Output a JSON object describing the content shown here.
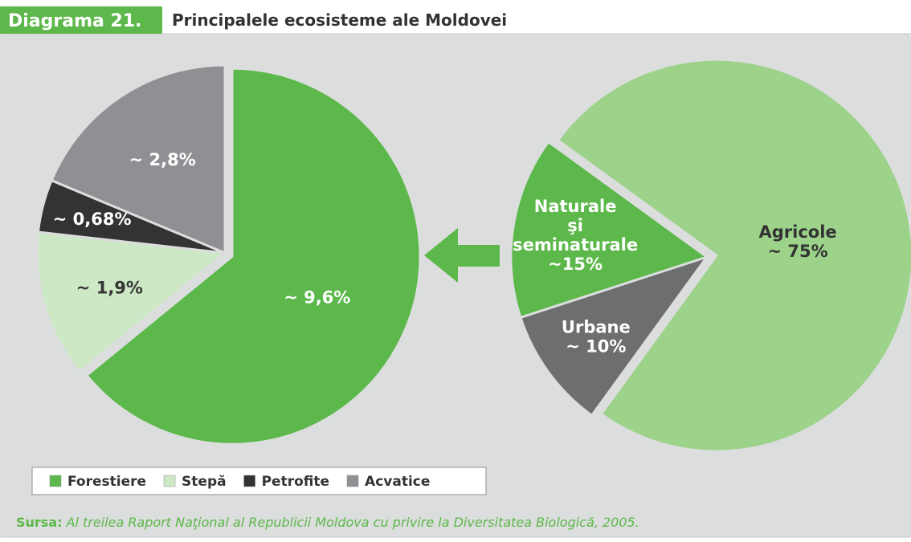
{
  "title_label": "Diagrama 21.",
  "title": "Principalele ecosisteme ale Moldovei",
  "source_label": "Sursa:",
  "source": "Al treilea Raport Naţional al Republicii Moldova cu privire la Diversitatea Biologică, 2005.",
  "chart_data": [
    {
      "type": "pie",
      "categories": [
        "Forestiere",
        "Stepă",
        "Petrofite",
        "Acvatice"
      ],
      "values": [
        9.6,
        1.9,
        0.68,
        2.8
      ],
      "value_labels": [
        "~ 9,6%",
        "~ 1,9%",
        "~ 0,68%",
        "~ 2,8%"
      ],
      "colors": [
        "#5cb84a",
        "#cde8c5",
        "#333333",
        "#8e9093"
      ],
      "legend": true
    },
    {
      "type": "pie",
      "categories": [
        "Agricole",
        "Urbane",
        "Naturale şi seminaturale"
      ],
      "values": [
        75,
        10,
        15
      ],
      "value_labels": [
        "~ 75%",
        "~ 10%",
        "~15%"
      ],
      "colors": [
        "#9dd28b",
        "#6d6e70",
        "#5cb84a"
      ],
      "legend": false
    }
  ]
}
